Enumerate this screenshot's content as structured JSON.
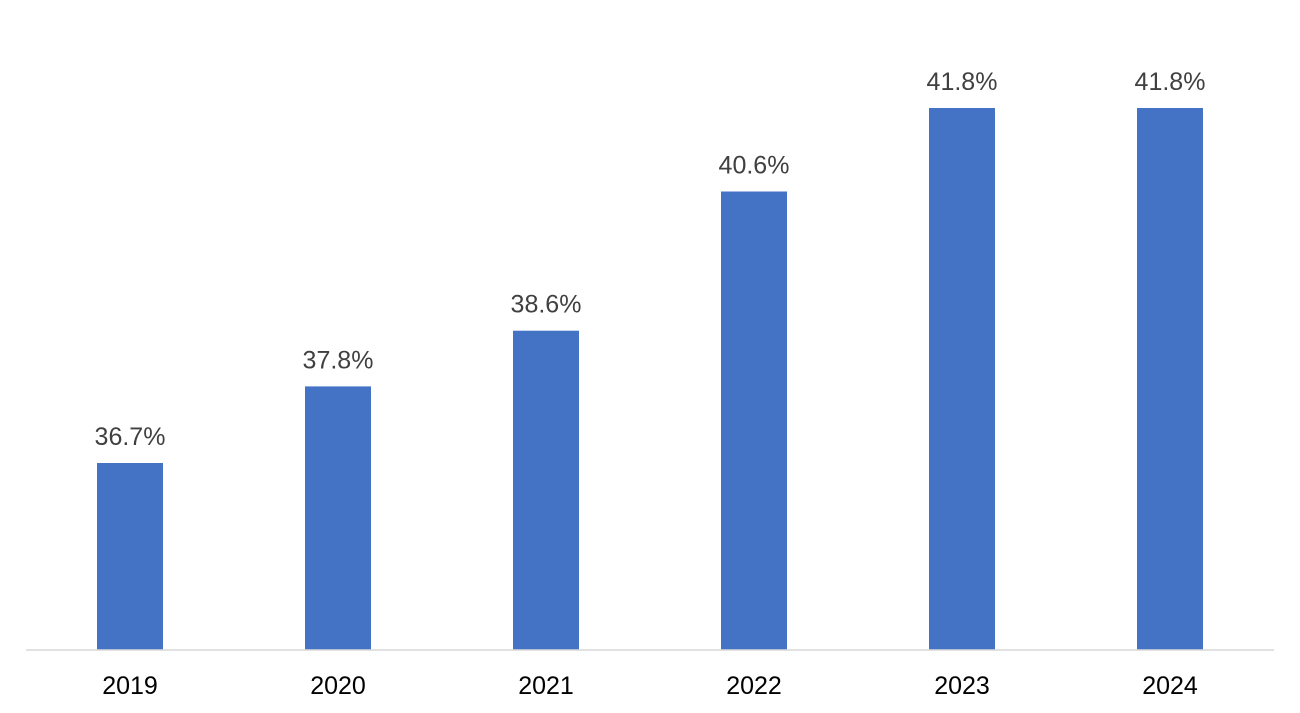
{
  "chart_data": {
    "type": "bar",
    "categories": [
      "2019",
      "2020",
      "2021",
      "2022",
      "2023",
      "2024"
    ],
    "values": [
      36.7,
      37.8,
      38.6,
      40.6,
      41.8,
      41.8
    ],
    "data_labels": [
      "36.7%",
      "37.8%",
      "38.6%",
      "40.6%",
      "41.8%",
      "41.8%"
    ],
    "title": "",
    "xlabel": "",
    "ylabel": "",
    "y_axis_visible": false,
    "grid": false,
    "legend": "none",
    "bar_color": "#4472C4",
    "axis_line_color": "#D9D9D9",
    "label_color": "#404040"
  }
}
